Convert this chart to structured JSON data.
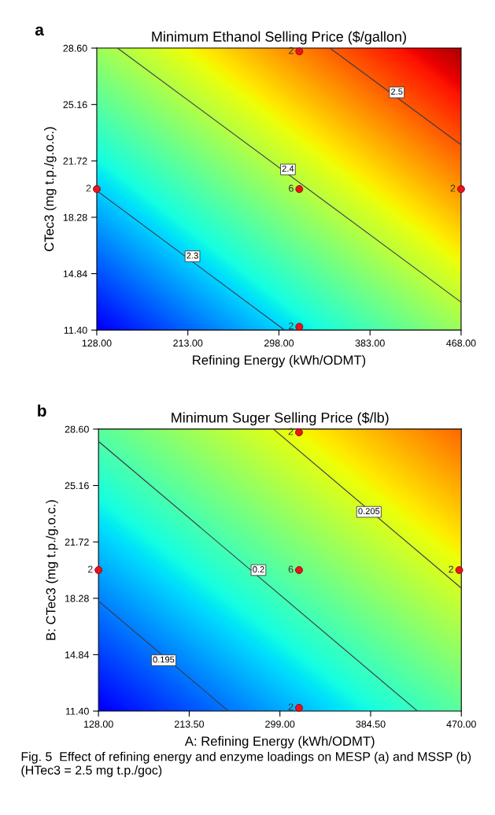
{
  "chart_data": [
    {
      "type": "scatter",
      "title": "Minimum Ethanol Selling Price ($/gallon)",
      "xlabel": "Refining Energy (kWh/ODMT)",
      "ylabel": "CTec3 (mg t.p./g.o.c.)",
      "xlim": [
        128,
        468
      ],
      "ylim": [
        11.4,
        28.6
      ],
      "xticks": [
        {
          "value": 128,
          "label": "128.00"
        },
        {
          "value": 213,
          "label": "213.00"
        },
        {
          "value": 298,
          "label": "298.00"
        },
        {
          "value": 383,
          "label": "383.00"
        },
        {
          "value": 468,
          "label": "468.00"
        }
      ],
      "yticks": [
        {
          "value": 11.4,
          "label": "11.40"
        },
        {
          "value": 14.84,
          "label": "14.84"
        },
        {
          "value": 18.28,
          "label": "18.28"
        },
        {
          "value": 21.72,
          "label": "21.72"
        },
        {
          "value": 25.16,
          "label": "25.16"
        },
        {
          "value": 28.6,
          "label": "28.60"
        }
      ],
      "grid": false,
      "series": [
        {
          "color": "#e8141c",
          "marker": "circle",
          "x": [
            128,
            317,
            317,
            317,
            468
          ],
          "values": [
            20,
            28.4,
            20,
            11.6,
            20
          ]
        },
        {
          "type": "line",
          "color": "#3a3a4a",
          "x": [
            128,
            303.2
          ],
          "values": [
            19.9,
            11.4
          ]
        },
        {
          "type": "line",
          "color": "#3a3a4a",
          "x": [
            147.4,
            468
          ],
          "values": [
            28.6,
            13.1
          ]
        },
        {
          "type": "line",
          "color": "#3a3a4a",
          "x": [
            345.6,
            468
          ],
          "values": [
            28.6,
            22.7
          ]
        }
      ],
      "annotations": [
        "a",
        {
          "text": "2",
          "x": 128,
          "y": 20
        },
        {
          "text": "2",
          "x": 317,
          "y": 28.4
        },
        {
          "text": "6",
          "x": 317,
          "y": 20
        },
        {
          "text": "2",
          "x": 317,
          "y": 11.6
        },
        {
          "text": "2",
          "x": 468,
          "y": 20
        },
        {
          "text": "2.3",
          "x": 217.3,
          "y": 15.9
        },
        {
          "text": "2.4",
          "x": 306.4,
          "y": 21.2
        },
        {
          "text": "2.5",
          "x": 408,
          "y": 25.9
        }
      ]
    },
    {
      "type": "scatter",
      "title": "Minimum Suger Selling Price ($/lb)",
      "xlabel": "A: Refining Energy (kWh/ODMT)",
      "ylabel": "B: CTec3 (mg t.p./g.o.c.)",
      "xlim": [
        128,
        470
      ],
      "ylim": [
        11.4,
        28.6
      ],
      "xticks": [
        {
          "value": 128,
          "label": "128.00"
        },
        {
          "value": 213.5,
          "label": "213.50"
        },
        {
          "value": 299,
          "label": "299.00"
        },
        {
          "value": 384.5,
          "label": "384.50"
        },
        {
          "value": 470,
          "label": "470.00"
        }
      ],
      "yticks": [
        {
          "value": 11.4,
          "label": "11.40"
        },
        {
          "value": 14.84,
          "label": "14.84"
        },
        {
          "value": 18.28,
          "label": "18.28"
        },
        {
          "value": 21.72,
          "label": "21.72"
        },
        {
          "value": 25.16,
          "label": "25.16"
        },
        {
          "value": 28.6,
          "label": "28.60"
        }
      ],
      "grid": false,
      "series": [
        {
          "color": "#e8141c",
          "marker": "circle",
          "x": [
            128,
            317,
            317,
            317,
            468
          ],
          "values": [
            20,
            28.4,
            20,
            11.6,
            20
          ]
        },
        {
          "type": "line",
          "color": "#3a3a4a",
          "x": [
            128,
            250.5
          ],
          "values": [
            18.1,
            11.4
          ]
        },
        {
          "type": "line",
          "color": "#3a3a4a",
          "x": [
            128,
            428.7
          ],
          "values": [
            27.85,
            11.4
          ]
        },
        {
          "type": "line",
          "color": "#3a3a4a",
          "x": [
            292.9,
            470
          ],
          "values": [
            28.6,
            18.9
          ]
        }
      ],
      "annotations": [
        "b",
        {
          "text": "2",
          "x": 128,
          "y": 20
        },
        {
          "text": "2",
          "x": 317,
          "y": 28.4
        },
        {
          "text": "6",
          "x": 317,
          "y": 20
        },
        {
          "text": "2",
          "x": 317,
          "y": 11.6
        },
        {
          "text": "2",
          "x": 468,
          "y": 20
        },
        {
          "text": "0.195",
          "x": 189.4,
          "y": 14.5
        },
        {
          "text": "0.2",
          "x": 278.8,
          "y": 20.0
        },
        {
          "text": "0.205",
          "x": 382.9,
          "y": 23.55
        },
        "Fig. 5  Effect of refining energy and enzyme loadings on MESP (a) and MSSP (b) (HTec3 = 2.5 mg t.p./goc)"
      ]
    }
  ]
}
